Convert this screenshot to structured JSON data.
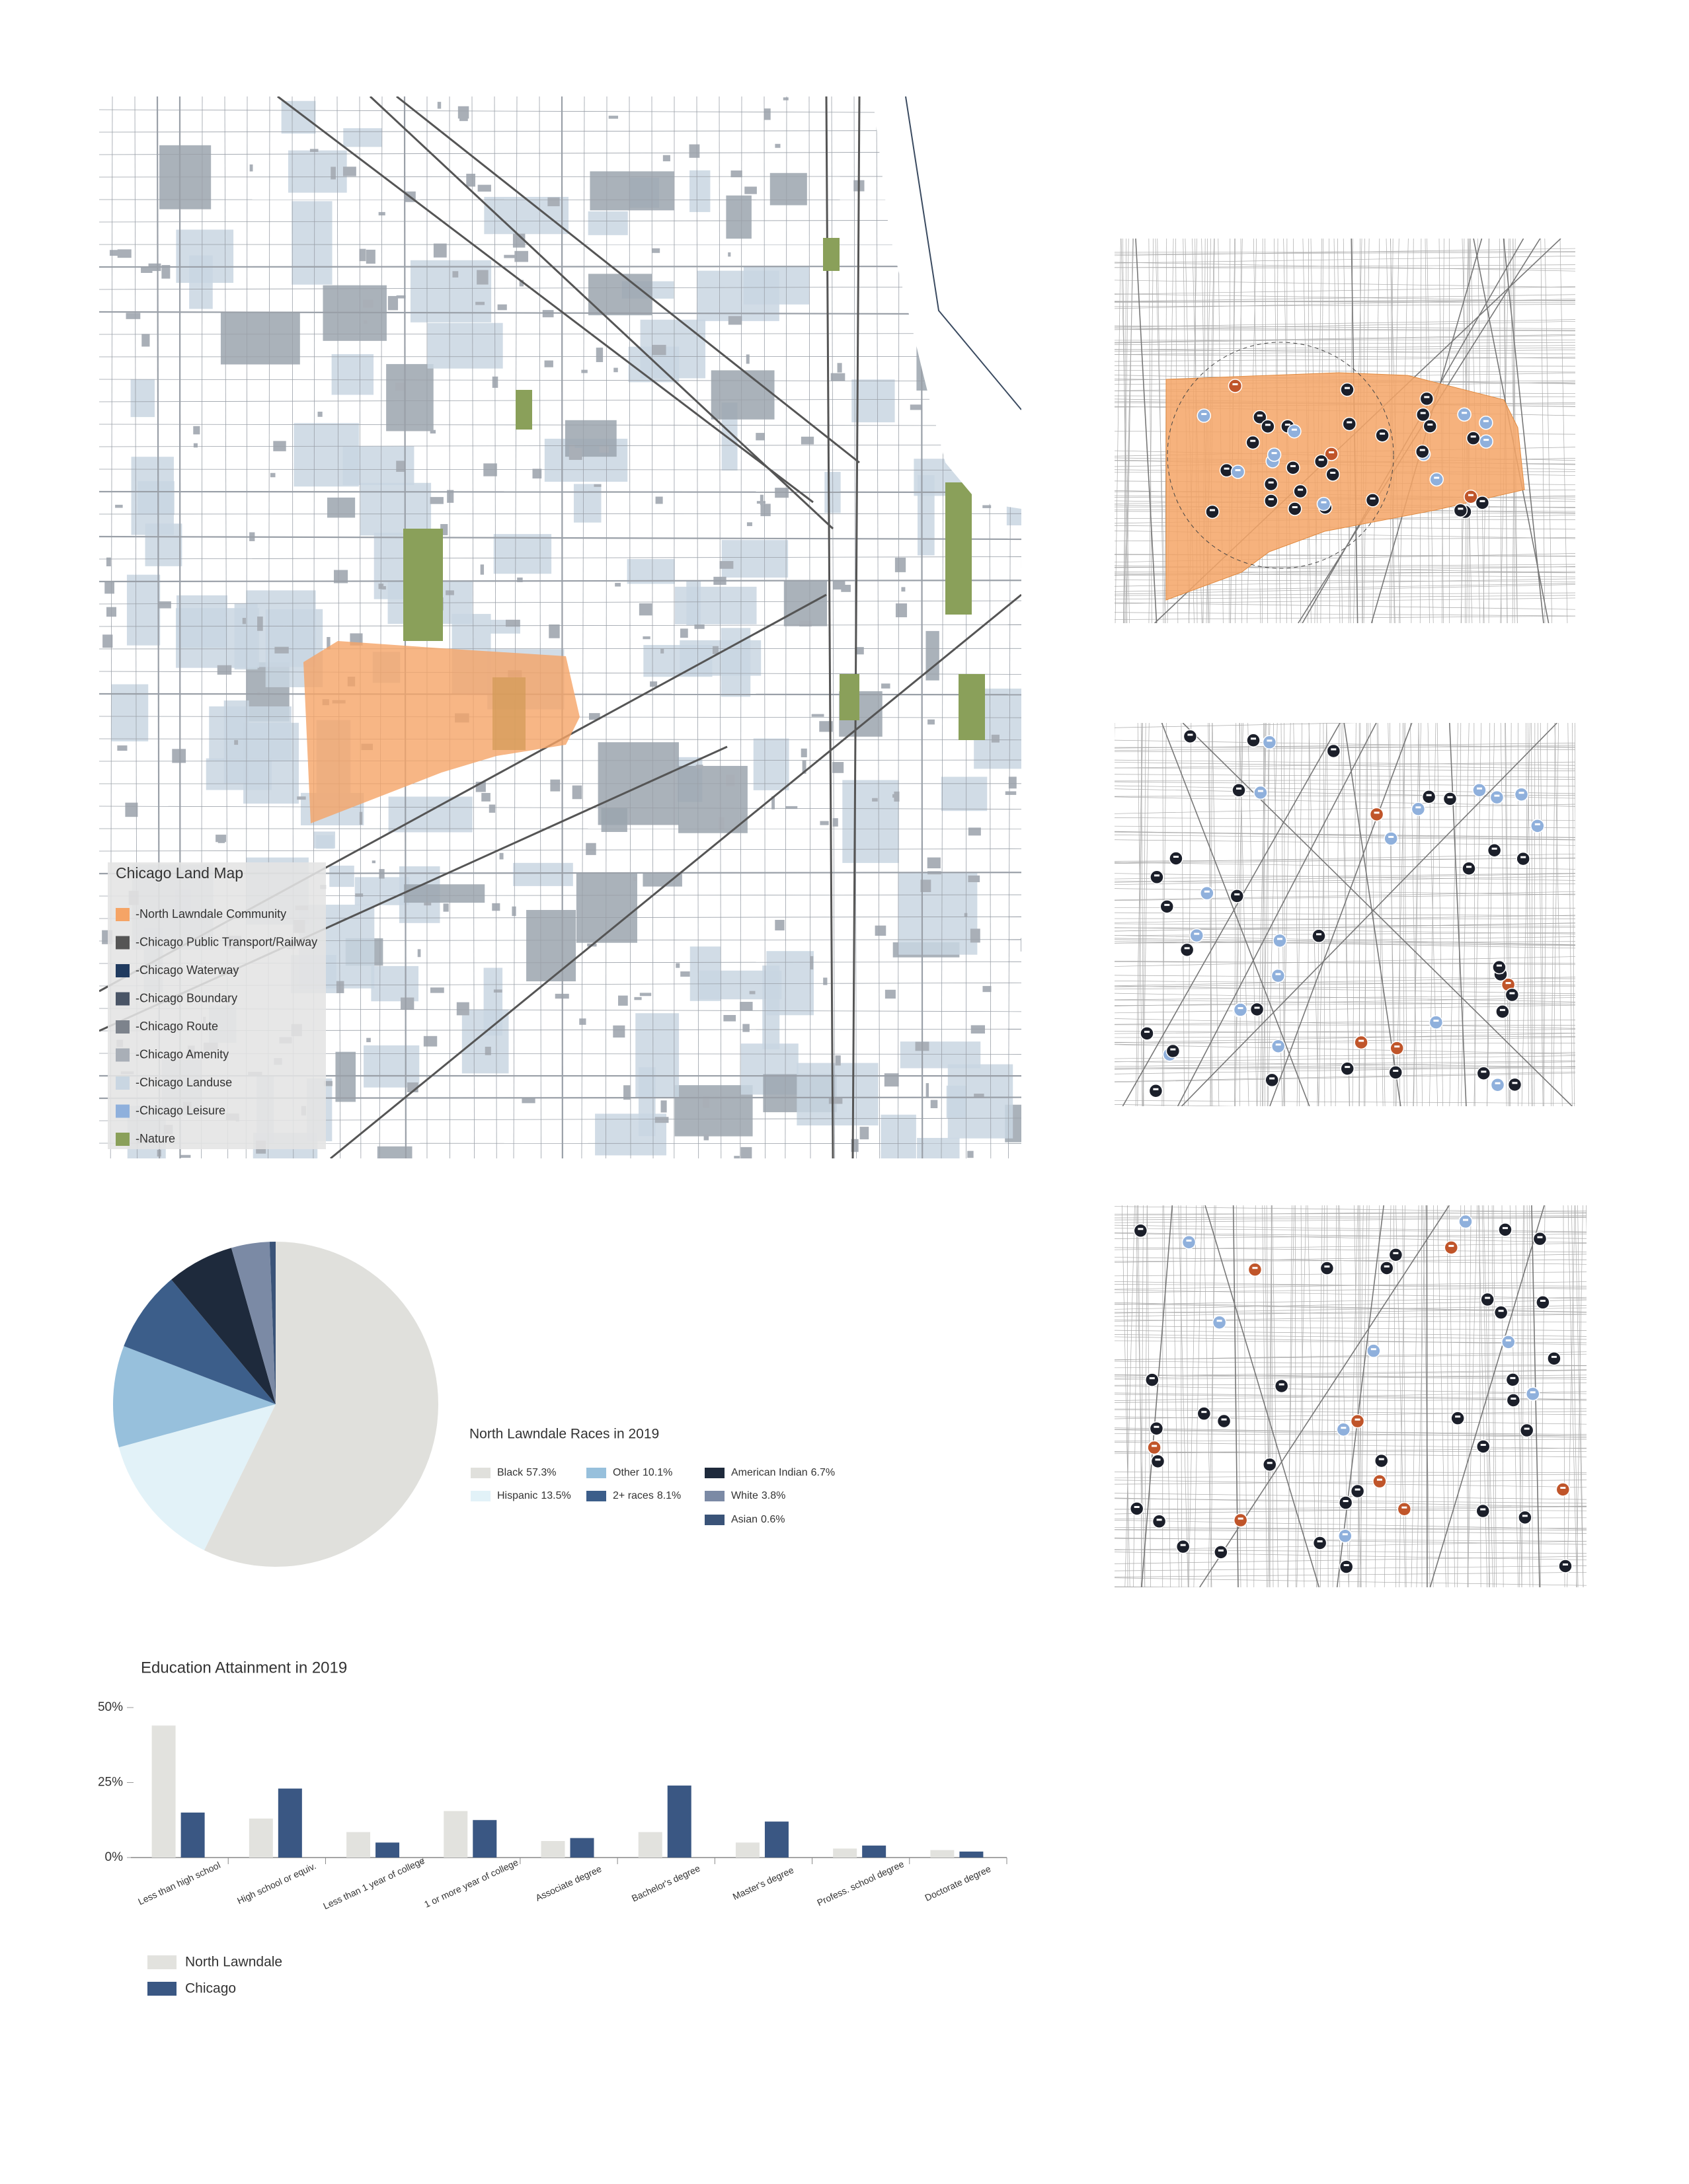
{
  "map": {
    "title": "Chicago Land Map",
    "legend": [
      {
        "label": "-North Lawndale Community",
        "color": "#f5a466"
      },
      {
        "label": "-Chicago Public Transport/Railway",
        "color": "#555555"
      },
      {
        "label": "-Chicago Waterway",
        "color": "#1f3a5f"
      },
      {
        "label": "-Chicago Boundary",
        "color": "#4a5566"
      },
      {
        "label": "-Chicago Route",
        "color": "#7d838c"
      },
      {
        "label": "-Chicago Amenity",
        "color": "#a9afb7"
      },
      {
        "label": "-Chicago Landuse",
        "color": "#c9d6e2"
      },
      {
        "label": "-Chicago Leisure",
        "color": "#8fb0dc"
      },
      {
        "label": "-Nature",
        "color": "#8aa05a"
      }
    ]
  },
  "chart_data": [
    {
      "type": "pie",
      "title": "North Lawndale Races in 2019",
      "categories": [
        "Black",
        "Hispanic",
        "Other",
        "2+ races",
        "American Indian",
        "White",
        "Asian"
      ],
      "values": [
        57.3,
        13.5,
        10.1,
        8.1,
        6.7,
        3.8,
        0.6
      ],
      "value_labels": [
        "57.3%",
        "13.5%",
        "10.1%",
        "8.1%",
        "6.7%",
        "3.8%",
        "0.6%"
      ],
      "colors": [
        "#e0e0dc",
        "#e2f2f8",
        "#97c0dc",
        "#3c5e8a",
        "#1e2a3c",
        "#7b8aa5",
        "#3a5378"
      ]
    },
    {
      "type": "bar",
      "title": "Education Attainment in 2019",
      "categories": [
        "Less than high school",
        "High school or equiv.",
        "Less than 1 year of college",
        "1 or more year of college",
        "Associate degree",
        "Bachelor's degree",
        "Master's degree",
        "Profess. school degree",
        "Doctorate degree"
      ],
      "series": [
        {
          "name": "North Lawndale",
          "color": "#e2e2de",
          "values": [
            44,
            13,
            8.5,
            15.5,
            5.5,
            8.5,
            5,
            3,
            2.5
          ]
        },
        {
          "name": "Chicago",
          "color": "#3a5783",
          "values": [
            15,
            23,
            5,
            12.5,
            6.5,
            24,
            12,
            4,
            2
          ]
        }
      ],
      "ylim": [
        0,
        50
      ],
      "yticks": [
        {
          "value": 0,
          "label": "0%"
        },
        {
          "value": 25,
          "label": "25%"
        },
        {
          "value": 50,
          "label": "50%"
        }
      ]
    }
  ]
}
